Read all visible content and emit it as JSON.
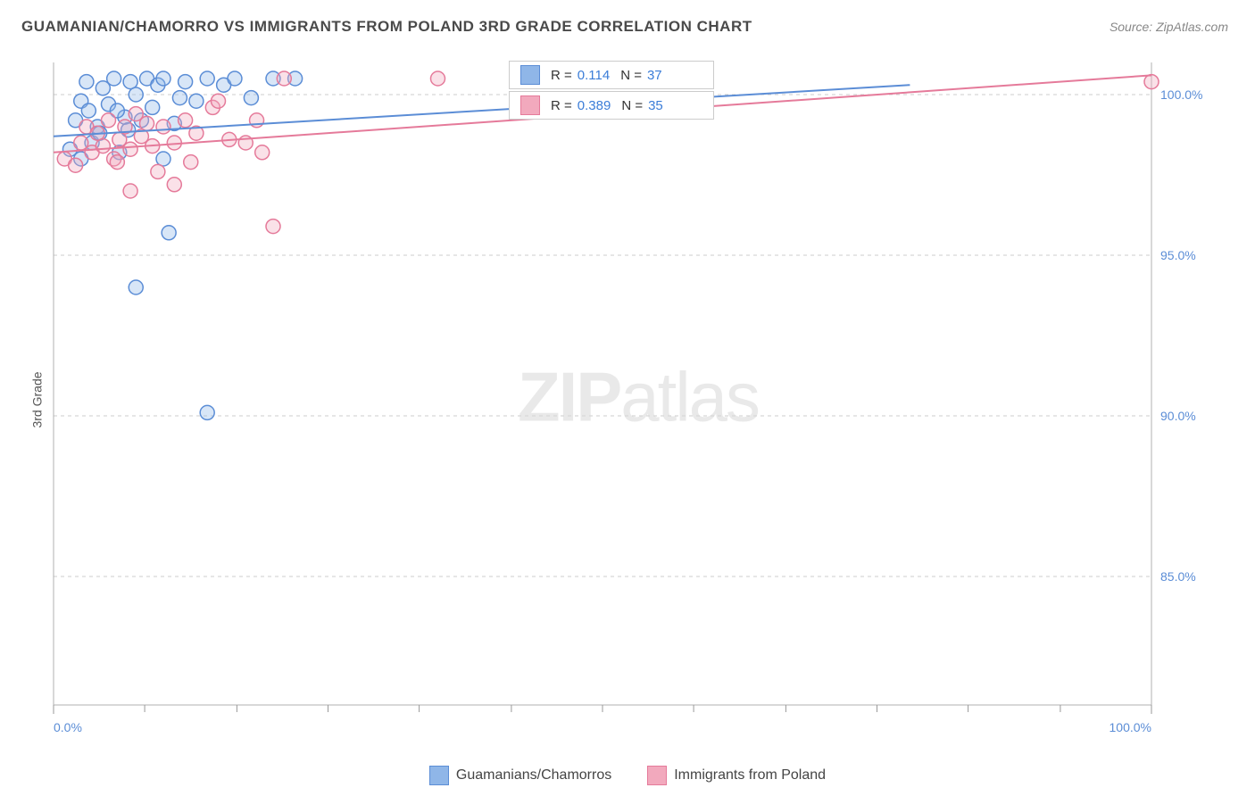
{
  "title": "GUAMANIAN/CHAMORRO VS IMMIGRANTS FROM POLAND 3RD GRADE CORRELATION CHART",
  "source": "Source: ZipAtlas.com",
  "y_axis_label": "3rd Grade",
  "watermark": {
    "a": "ZIP",
    "b": "atlas"
  },
  "chart": {
    "type": "scatter",
    "xlim": [
      0,
      100
    ],
    "ylim": [
      81,
      101
    ],
    "x_ticks": [
      0,
      100
    ],
    "x_tick_labels": [
      "0.0%",
      "100.0%"
    ],
    "x_minor_ticks": [
      8.3,
      16.7,
      25,
      33.3,
      41.7,
      50,
      58.3,
      66.7,
      75,
      83.3,
      91.7
    ],
    "y_ticks": [
      85,
      90,
      95,
      100
    ],
    "y_tick_labels": [
      "85.0%",
      "90.0%",
      "95.0%",
      "100.0%"
    ],
    "background_color": "#ffffff",
    "grid_color": "#cccccc",
    "marker_radius": 8,
    "series": [
      {
        "name": "Guamanians/Chamorros",
        "color_fill": "#8fb6e8",
        "color_stroke": "#5b8dd6",
        "R": "0.114",
        "N": "37",
        "trend": {
          "x1": 0,
          "y1": 98.7,
          "x2": 78,
          "y2": 100.3
        },
        "points": [
          [
            1.5,
            98.3
          ],
          [
            2.0,
            99.2
          ],
          [
            2.5,
            99.8
          ],
          [
            3.0,
            100.4
          ],
          [
            3.2,
            99.5
          ],
          [
            3.5,
            98.5
          ],
          [
            4.0,
            99.0
          ],
          [
            4.5,
            100.2
          ],
          [
            5.0,
            99.7
          ],
          [
            5.5,
            100.5
          ],
          [
            6.0,
            98.2
          ],
          [
            6.5,
            99.3
          ],
          [
            7.0,
            100.4
          ],
          [
            7.5,
            100.0
          ],
          [
            8.0,
            99.2
          ],
          [
            8.5,
            100.5
          ],
          [
            9.0,
            99.6
          ],
          [
            9.5,
            100.3
          ],
          [
            10.0,
            100.5
          ],
          [
            11.0,
            99.1
          ],
          [
            12.0,
            100.4
          ],
          [
            13.0,
            99.8
          ],
          [
            14.0,
            100.5
          ],
          [
            15.5,
            100.3
          ],
          [
            16.5,
            100.5
          ],
          [
            18.0,
            99.9
          ],
          [
            20.0,
            100.5
          ],
          [
            22.0,
            100.5
          ],
          [
            10.0,
            98.0
          ],
          [
            7.5,
            94.0
          ],
          [
            10.5,
            95.7
          ],
          [
            14.0,
            90.1
          ],
          [
            2.5,
            98.0
          ],
          [
            4.2,
            98.8
          ],
          [
            5.8,
            99.5
          ],
          [
            6.8,
            98.9
          ],
          [
            11.5,
            99.9
          ]
        ]
      },
      {
        "name": "Immigrants from Poland",
        "color_fill": "#f2a9bd",
        "color_stroke": "#e57a9a",
        "R": "0.389",
        "N": "35",
        "trend": {
          "x1": 0,
          "y1": 98.2,
          "x2": 100,
          "y2": 100.6
        },
        "points": [
          [
            1.0,
            98.0
          ],
          [
            2.0,
            97.8
          ],
          [
            2.5,
            98.5
          ],
          [
            3.0,
            99.0
          ],
          [
            3.5,
            98.2
          ],
          [
            4.0,
            98.8
          ],
          [
            4.5,
            98.4
          ],
          [
            5.0,
            99.2
          ],
          [
            5.5,
            98.0
          ],
          [
            6.0,
            98.6
          ],
          [
            6.5,
            99.0
          ],
          [
            7.0,
            98.3
          ],
          [
            7.5,
            99.4
          ],
          [
            8.0,
            98.7
          ],
          [
            8.5,
            99.1
          ],
          [
            9.0,
            98.4
          ],
          [
            10.0,
            99.0
          ],
          [
            11.0,
            98.5
          ],
          [
            12.0,
            99.2
          ],
          [
            13.0,
            98.8
          ],
          [
            14.5,
            99.6
          ],
          [
            16.0,
            98.6
          ],
          [
            17.5,
            98.5
          ],
          [
            19.0,
            98.2
          ],
          [
            21.0,
            100.5
          ],
          [
            7.0,
            97.0
          ],
          [
            11.0,
            97.2
          ],
          [
            20.0,
            95.9
          ],
          [
            35.0,
            100.5
          ],
          [
            100.0,
            100.4
          ],
          [
            5.8,
            97.9
          ],
          [
            9.5,
            97.6
          ],
          [
            12.5,
            97.9
          ],
          [
            15.0,
            99.8
          ],
          [
            18.5,
            99.2
          ]
        ]
      }
    ]
  },
  "bottom_legend": [
    {
      "label": "Guamanians/Chamorros",
      "fill": "#8fb6e8",
      "stroke": "#5b8dd6"
    },
    {
      "label": "Immigrants from Poland",
      "fill": "#f2a9bd",
      "stroke": "#e57a9a"
    }
  ]
}
